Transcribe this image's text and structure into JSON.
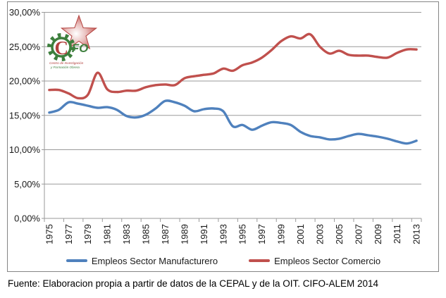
{
  "logo": {
    "letter_c": "C",
    "letters_ifo": "IFO",
    "caption_line1": "Centro de Investigación",
    "caption_line2": "y Formación Obrera"
  },
  "legend": [
    {
      "label": "Empleos Sector Manufacturero",
      "color": "#4F81BD"
    },
    {
      "label": "Empleos Sector Comercio",
      "color": "#C0504D"
    }
  ],
  "footer": {
    "text": "Fuente: Elaboracion propia a partir de datos de la CEPAL y de la OIT. CIFO-ALEM 2014"
  },
  "colors": {
    "grid": "#9a9a9a",
    "axis": "#9a9a9a",
    "frame": "#858585",
    "tick_text": "#1a1a1a",
    "series_blue": "#4F81BD",
    "series_red": "#C0504D",
    "logo_green": "#3d7f3d",
    "logo_red": "#b2403d"
  },
  "chart_data": {
    "type": "line",
    "title": "",
    "xlabel": "",
    "ylabel": "",
    "ylim": [
      0,
      30
    ],
    "y_tick_step": 5,
    "grid": true,
    "smooth": true,
    "legend_position": "bottom",
    "y_tick_labels": [
      "0,00%",
      "5,00%",
      "10,00%",
      "15,00%",
      "20,00%",
      "25,00%",
      "30,00%"
    ],
    "y_tick_values": [
      0,
      5,
      10,
      15,
      20,
      25,
      30
    ],
    "x": [
      1975,
      1976,
      1977,
      1978,
      1979,
      1980,
      1981,
      1982,
      1983,
      1984,
      1985,
      1986,
      1987,
      1988,
      1989,
      1990,
      1991,
      1992,
      1993,
      1994,
      1995,
      1996,
      1997,
      1998,
      1999,
      2000,
      2001,
      2002,
      2003,
      2004,
      2005,
      2006,
      2007,
      2008,
      2009,
      2010,
      2011,
      2012,
      2013
    ],
    "x_tick_labels": [
      "1975",
      "1977",
      "1979",
      "1981",
      "1983",
      "1985",
      "1987",
      "1989",
      "1991",
      "1993",
      "1995",
      "1997",
      "1999",
      "2001",
      "2003",
      "2005",
      "2007",
      "2009",
      "2011",
      "2013"
    ],
    "series": [
      {
        "name": "Empleos Sector Manufacturero",
        "color": "#4F81BD",
        "values": [
          15.4,
          15.8,
          16.9,
          16.7,
          16.4,
          16.1,
          16.2,
          15.8,
          14.9,
          14.7,
          15.1,
          16.0,
          17.1,
          16.9,
          16.4,
          15.6,
          15.9,
          16.0,
          15.6,
          13.4,
          13.6,
          12.9,
          13.5,
          14.0,
          13.9,
          13.6,
          12.6,
          12.0,
          11.8,
          11.5,
          11.6,
          12.0,
          12.3,
          12.1,
          11.9,
          11.6,
          11.2,
          10.9,
          11.3
        ]
      },
      {
        "name": "Empleos Sector Comercio",
        "color": "#C0504D",
        "values": [
          18.7,
          18.7,
          18.2,
          17.5,
          18.0,
          21.2,
          18.8,
          18.4,
          18.6,
          18.6,
          19.1,
          19.4,
          19.5,
          19.4,
          20.4,
          20.7,
          20.9,
          21.1,
          21.8,
          21.5,
          22.3,
          22.7,
          23.4,
          24.5,
          25.8,
          26.5,
          26.2,
          26.8,
          25.0,
          24.0,
          24.4,
          23.8,
          23.7,
          23.7,
          23.5,
          23.4,
          24.1,
          24.6,
          24.6
        ]
      }
    ]
  }
}
